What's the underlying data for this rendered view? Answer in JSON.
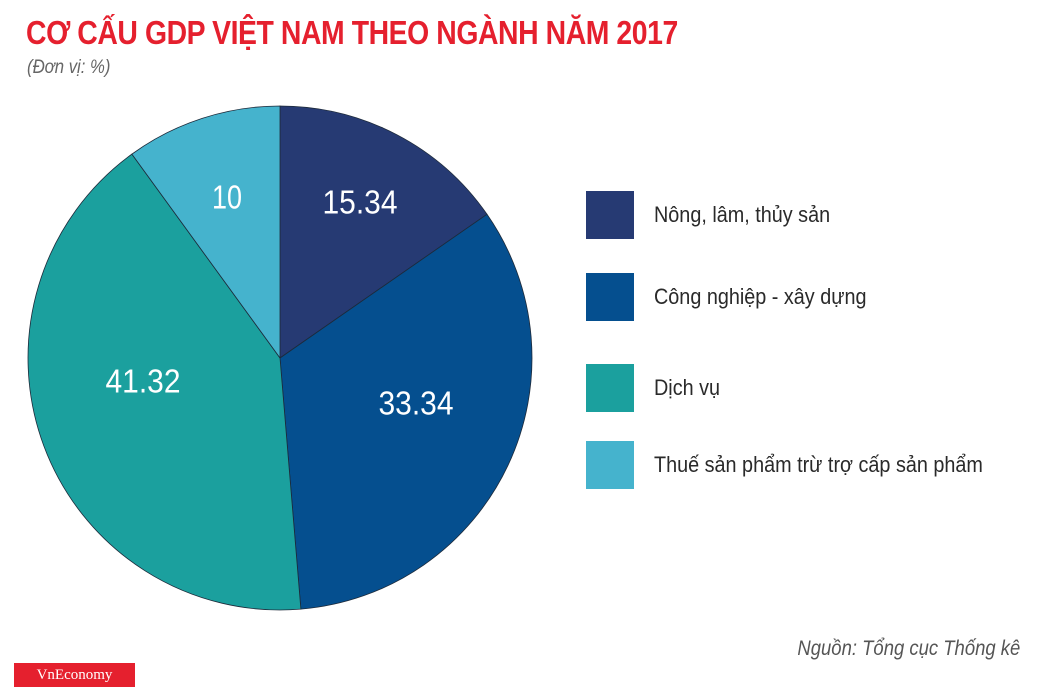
{
  "header": {
    "title": "CƠ CẤU GDP VIỆT NAM THEO NGÀNH NĂM 2017",
    "subtitle": "(Đơn vị: %)"
  },
  "legend": {
    "items": [
      {
        "label": "Nông, lâm, thủy sản",
        "color": "#263a73"
      },
      {
        "label": "Công nghiệp - xây dựng",
        "color": "#054f8f"
      },
      {
        "label": "Dịch vụ",
        "color": "#1ba09e"
      },
      {
        "label": "Thuế sản phẩm trừ trợ cấp sản phẩm",
        "color": "#45b3cd"
      }
    ]
  },
  "slices": [
    {
      "label": "15.34",
      "value": 15.34,
      "color": "#263a73"
    },
    {
      "label": "33.34",
      "value": 33.34,
      "color": "#054f8f"
    },
    {
      "label": "41.32",
      "value": 41.32,
      "color": "#1ba09e"
    },
    {
      "label": "10",
      "value": 10,
      "color": "#45b3cd"
    }
  ],
  "footer": {
    "source": "Nguồn: Tổng cục Thống kê",
    "logo": "VnEconomy"
  },
  "chart_data": {
    "type": "pie",
    "title": "CƠ CẤU GDP VIỆT NAM THEO NGÀNH NĂM 2017",
    "subtitle": "(Đơn vị: %)",
    "categories": [
      "Nông, lâm, thủy sản",
      "Công nghiệp - xây dựng",
      "Dịch vụ",
      "Thuế sản phẩm trừ trợ cấp sản phẩm"
    ],
    "values": [
      15.34,
      33.34,
      41.32,
      10
    ],
    "colors": [
      "#263a73",
      "#054f8f",
      "#1ba09e",
      "#45b3cd"
    ],
    "legend_position": "right",
    "start_angle": "12 o'clock, clockwise",
    "source": "Nguồn: Tổng cục Thống kê"
  }
}
